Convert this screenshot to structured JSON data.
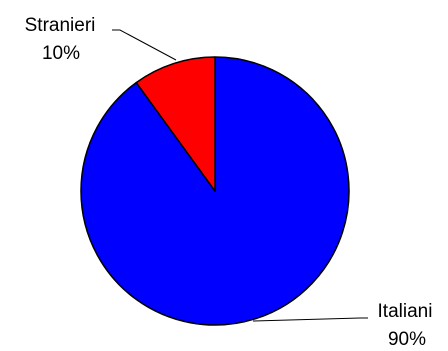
{
  "chart_data": {
    "type": "pie",
    "title": "",
    "start_angle_deg": 0,
    "direction": "clockwise",
    "slices": [
      {
        "label": "Italiani",
        "value": 90,
        "value_label": "90%",
        "color": "#0000ff"
      },
      {
        "label": "Stranieri",
        "value": 10,
        "value_label": "10%",
        "color": "#ff0000"
      }
    ],
    "legend": "none"
  }
}
